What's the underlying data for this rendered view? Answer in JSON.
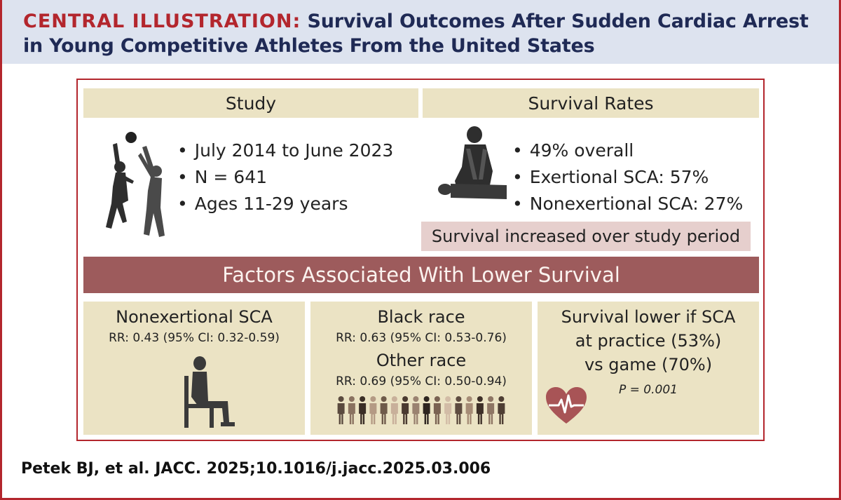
{
  "header": {
    "label": "CENTRAL ILLUSTRATION:",
    "title_line1": "Survival Outcomes After Sudden Cardiac Arrest",
    "title_line2": "in Young Competitive Athletes From the United States"
  },
  "study": {
    "heading": "Study",
    "bullets": [
      "July 2014 to June 2023",
      "N = 641",
      "Ages 11-29 years"
    ],
    "icon": "basketball-players-icon"
  },
  "survival": {
    "heading": "Survival Rates",
    "bullets": [
      "49% overall",
      "Exertional SCA: 57%",
      "Nonexertional SCA: 27%"
    ],
    "note": "Survival increased over study period",
    "icon": "cpr-icon"
  },
  "factors": {
    "heading": "Factors Associated With Lower Survival",
    "nonexertional": {
      "title": "Nonexertional SCA",
      "rr": "RR: 0.43 (95% CI: 0.32-0.59)",
      "icon": "seated-person-icon"
    },
    "race": {
      "black_title": "Black race",
      "black_rr": "RR: 0.63 (95% CI: 0.53-0.76)",
      "other_title": "Other race",
      "other_rr": "RR: 0.69 (95% CI: 0.50-0.94)",
      "icon": "diverse-people-icon"
    },
    "venue": {
      "line1": "Survival lower if SCA",
      "line2": "at practice (53%)",
      "line3": "vs game (70%)",
      "p_value": "P = 0.001",
      "icon": "heart-ecg-icon"
    }
  },
  "citation": "Petek BJ, et al. JACC. 2025;10.1016/j.jacc.2025.03.006",
  "colors": {
    "accent_red": "#b3262d",
    "navy": "#1f2a55",
    "tan": "#ebe3c4",
    "maroon_bar": "#9d5b5c",
    "pink": "#e6cfcd"
  }
}
